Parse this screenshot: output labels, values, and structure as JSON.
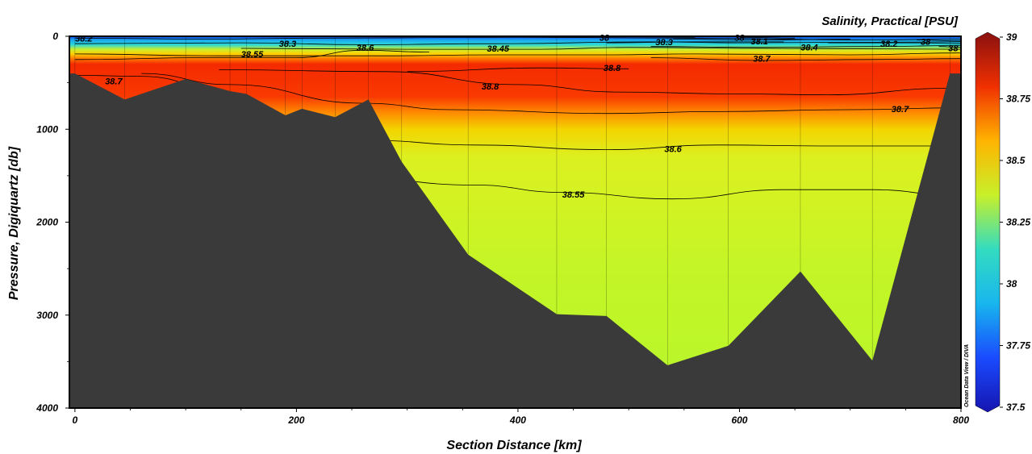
{
  "chart_data": {
    "type": "heatmap",
    "title": "Salinity, Practical [PSU]",
    "xlabel": "Section Distance [km]",
    "ylabel": "Pressure, Digiquartz [db]",
    "xlim": [
      -5,
      800
    ],
    "ylim": [
      4000,
      0
    ],
    "x_ticks": [
      0,
      200,
      400,
      600,
      800
    ],
    "y_ticks": [
      0,
      1000,
      2000,
      3000,
      4000
    ],
    "colorbar": {
      "min": 37.5,
      "max": 39,
      "ticks": [
        37.5,
        37.75,
        38,
        38.25,
        38.5,
        38.75,
        39
      ],
      "tick_labels": [
        "37.5",
        "37.75",
        "38",
        "38.25",
        "38.5",
        "38.75",
        "39"
      ],
      "colors": [
        "#1515b0",
        "#1a4bff",
        "#18b6ee",
        "#33dcc0",
        "#c8f02a",
        "#ffb400",
        "#f03000",
        "#8a1010"
      ]
    },
    "station_x": [
      0,
      45,
      100,
      140,
      155,
      190,
      205,
      235,
      265,
      295,
      355,
      435,
      480,
      535,
      590,
      655,
      720,
      790
    ],
    "bathymetry": {
      "x": [
        -5,
        0,
        45,
        100,
        140,
        155,
        190,
        205,
        235,
        265,
        295,
        355,
        435,
        480,
        535,
        590,
        655,
        720,
        790,
        800
      ],
      "depth": [
        400,
        400,
        680,
        460,
        590,
        620,
        850,
        780,
        870,
        680,
        1350,
        2350,
        2990,
        3010,
        3540,
        3330,
        2530,
        3490,
        400,
        400
      ]
    },
    "layers": [
      {
        "depth": 0,
        "color": "#1642f2"
      },
      {
        "depth": 40,
        "color": "#1aa8f0"
      },
      {
        "depth": 90,
        "color": "#2ad8d8"
      },
      {
        "depth": 140,
        "color": "#c8ee30"
      },
      {
        "depth": 190,
        "color": "#ffd000"
      },
      {
        "depth": 240,
        "color": "#ff7a00"
      },
      {
        "depth": 300,
        "color": "#f52a00"
      },
      {
        "depth": 650,
        "color": "#f83a00"
      },
      {
        "depth": 820,
        "color": "#ff8a00"
      },
      {
        "depth": 1000,
        "color": "#f3d400"
      },
      {
        "depth": 1300,
        "color": "#dcf020"
      },
      {
        "depth": 2500,
        "color": "#c4f526"
      },
      {
        "depth": 4000,
        "color": "#b6f72c"
      }
    ],
    "contours": [
      {
        "label": "38.55",
        "points": [
          [
            120,
            1540
          ],
          [
            250,
            1520
          ],
          [
            360,
            1600
          ],
          [
            440,
            1680
          ],
          [
            540,
            1750
          ],
          [
            640,
            1650
          ],
          [
            720,
            1650
          ],
          [
            800,
            1720
          ]
        ],
        "label_at": [
          450,
          1700
        ]
      },
      {
        "label": "38.6",
        "points": [
          [
            265,
            1120
          ],
          [
            360,
            1170
          ],
          [
            480,
            1220
          ],
          [
            580,
            1170
          ],
          [
            680,
            1180
          ],
          [
            800,
            1180
          ]
        ],
        "label_at": [
          540,
          1210
        ]
      },
      {
        "label": "38.7",
        "points": [
          [
            60,
            400
          ],
          [
            140,
            520
          ],
          [
            260,
            720
          ],
          [
            340,
            790
          ],
          [
            480,
            830
          ],
          [
            580,
            810
          ],
          [
            700,
            790
          ],
          [
            800,
            770
          ]
        ],
        "label_at": [
          745,
          780
        ]
      },
      {
        "label": "38.8",
        "points": [
          [
            130,
            360
          ],
          [
            280,
            380
          ],
          [
            400,
            520
          ],
          [
            490,
            600
          ],
          [
            600,
            620
          ],
          [
            680,
            630
          ],
          [
            790,
            560
          ]
        ],
        "label_at": [
          375,
          540
        ]
      },
      {
        "label": "38.7",
        "points": [
          [
            0,
            420
          ],
          [
            60,
            430
          ],
          [
            140,
            600
          ]
        ],
        "label_at": [
          35,
          480
        ]
      },
      {
        "label": "38.8",
        "points": [
          [
            300,
            380
          ],
          [
            420,
            340
          ],
          [
            500,
            350
          ]
        ],
        "label_at": [
          485,
          340
        ]
      },
      {
        "label": "38.7",
        "points": [
          [
            520,
            230
          ],
          [
            620,
            260
          ],
          [
            720,
            250
          ],
          [
            800,
            240
          ]
        ],
        "label_at": [
          620,
          240
        ]
      },
      {
        "label": "38.6",
        "points": [
          [
            0,
            250
          ],
          [
            120,
            230
          ],
          [
            200,
            230
          ],
          [
            260,
            150
          ],
          [
            320,
            170
          ]
        ],
        "label_at": [
          262,
          120
        ]
      },
      {
        "label": "38.55",
        "points": [
          [
            0,
            190
          ],
          [
            130,
            210
          ],
          [
            280,
            210
          ],
          [
            380,
            200
          ],
          [
            480,
            200
          ],
          [
            560,
            190
          ],
          [
            700,
            200
          ],
          [
            800,
            180
          ]
        ],
        "label_at": [
          160,
          190
        ]
      },
      {
        "label": "38.45",
        "points": [
          [
            150,
            130
          ],
          [
            300,
            140
          ],
          [
            420,
            140
          ],
          [
            500,
            120
          ],
          [
            620,
            130
          ],
          [
            800,
            140
          ]
        ],
        "label_at": [
          382,
          130
        ]
      },
      {
        "label": "38.4",
        "points": [
          [
            520,
            110
          ],
          [
            620,
            120
          ],
          [
            720,
            110
          ],
          [
            800,
            100
          ]
        ],
        "label_at": [
          663,
          118
        ]
      },
      {
        "label": "38.3",
        "points": [
          [
            0,
            80
          ],
          [
            150,
            70
          ],
          [
            260,
            90
          ],
          [
            380,
            80
          ],
          [
            520,
            60
          ],
          [
            600,
            70
          ],
          [
            800,
            60
          ]
        ],
        "label_at": [
          192,
          80
        ]
      },
      {
        "label": "38.3",
        "points": [
          [
            480,
            70
          ],
          [
            560,
            60
          ],
          [
            640,
            60
          ]
        ],
        "label_at": [
          532,
          60
        ]
      },
      {
        "label": "38.2",
        "points": [
          [
            0,
            20
          ],
          [
            120,
            30
          ],
          [
            220,
            20
          ],
          [
            400,
            10
          ],
          [
            560,
            20
          ],
          [
            720,
            40
          ],
          [
            800,
            30
          ]
        ],
        "label_at": [
          8,
          20
        ]
      },
      {
        "label": "38.2",
        "points": [
          [
            680,
            70
          ],
          [
            760,
            70
          ],
          [
            800,
            80
          ]
        ],
        "label_at": [
          735,
          80
        ]
      },
      {
        "label": "38.1",
        "points": [
          [
            540,
            30
          ],
          [
            620,
            40
          ],
          [
            700,
            30
          ]
        ],
        "label_at": [
          618,
          50
        ]
      },
      {
        "label": "38",
        "points": [
          [
            430,
            10
          ],
          [
            500,
            5
          ],
          [
            560,
            10
          ]
        ],
        "label_at": [
          478,
          15
        ]
      },
      {
        "label": "38",
        "points": [
          [
            600,
            10
          ],
          [
            650,
            20
          ]
        ],
        "label_at": [
          600,
          15
        ]
      },
      {
        "label": "38",
        "points": [
          [
            760,
            40
          ],
          [
            800,
            50
          ]
        ],
        "label_at": [
          768,
          55
        ]
      },
      {
        "label": "38",
        "points": [
          [
            780,
            110
          ],
          [
            800,
            120
          ]
        ],
        "label_at": [
          793,
          125
        ]
      }
    ],
    "watermark": "Ocean Data View / DIVA"
  }
}
